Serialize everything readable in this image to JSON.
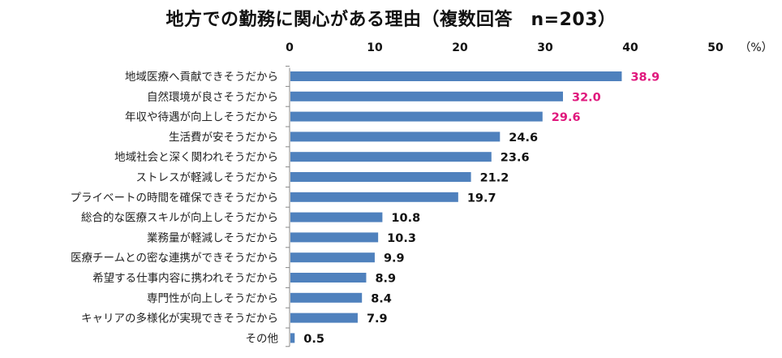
{
  "chart_data": {
    "type": "bar",
    "orientation": "horizontal",
    "title": "地方での勤務に関心がある理由（複数回答　n=203）",
    "unit_label": "（%）",
    "xlim": [
      0,
      50
    ],
    "ticks": [
      "0",
      "10",
      "20",
      "30",
      "40",
      "50"
    ],
    "tick_values": [
      0,
      10,
      20,
      30,
      40,
      50
    ],
    "axis_position": "top",
    "grid": false,
    "legend": "none",
    "bar_color": "#4f81bd",
    "highlight_color": "#e0187d",
    "label_color": "#111111",
    "categories": [
      "地域医療へ貢献できそうだから",
      "自然環境が良さそうだから",
      "年収や待遇が向上しそうだから",
      "生活費が安そうだから",
      "地域社会と深く関われそうだから",
      "ストレスが軽減しそうだから",
      "プライベートの時間を確保できそうだから",
      "総合的な医療スキルが向上しそうだから",
      "業務量が軽減しそうだから",
      "医療チームとの密な連携ができそうだから",
      "希望する仕事内容に携われそうだから",
      "専門性が向上しそうだから",
      "キャリアの多様化が実現できそうだから",
      "その他"
    ],
    "values": [
      38.9,
      32.0,
      29.6,
      24.6,
      23.6,
      21.2,
      19.7,
      10.8,
      10.3,
      9.9,
      8.9,
      8.4,
      7.9,
      0.5
    ],
    "value_labels": [
      "38.9",
      "32.0",
      "29.6",
      "24.6",
      "23.6",
      "21.2",
      "19.7",
      "10.8",
      "10.3",
      "9.9",
      "8.9",
      "8.4",
      "7.9",
      "0.5"
    ],
    "highlighted": [
      true,
      true,
      true,
      false,
      false,
      false,
      false,
      false,
      false,
      false,
      false,
      false,
      false,
      false
    ]
  }
}
